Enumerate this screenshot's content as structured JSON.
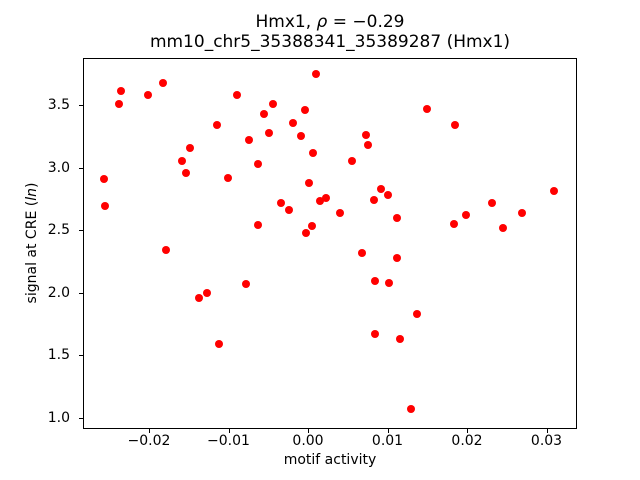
{
  "title": {
    "prefix": "Hmx1, ",
    "rho": "ρ",
    "suffix": " = −0.29",
    "line2": "mm10_chr5_35388341_35389287 (Hmx1)"
  },
  "ylabel_parts": {
    "prefix": "signal at CRE (",
    "italic": "ln",
    "suffix": ")"
  },
  "chart_data": {
    "type": "scatter",
    "title": "Hmx1, ρ = −0.29",
    "subtitle": "mm10_chr5_35388341_35389287 (Hmx1)",
    "xlabel": "motif activity",
    "ylabel": "signal at CRE (ln)",
    "xlim": [
      -0.02824,
      0.03375
    ],
    "ylim": [
      0.912,
      3.876
    ],
    "xticks": [
      -0.02,
      -0.01,
      0.0,
      0.01,
      0.02,
      0.03
    ],
    "xtick_labels": [
      "−0.02",
      "−0.01",
      "0.00",
      "0.01",
      "0.02",
      "0.03"
    ],
    "yticks": [
      1.0,
      1.5,
      2.0,
      2.5,
      3.0,
      3.5
    ],
    "ytick_labels": [
      "1.0",
      "1.5",
      "2.0",
      "2.5",
      "3.0",
      "3.5"
    ],
    "grid": false,
    "legend": "none",
    "marker_color": "#ff0000",
    "points": [
      [
        -0.0235,
        3.61
      ],
      [
        -0.0183,
        3.68
      ],
      [
        -0.0201,
        3.58
      ],
      [
        -0.0238,
        3.51
      ],
      [
        -0.009,
        3.58
      ],
      [
        -0.0115,
        3.34
      ],
      [
        -0.0074,
        3.22
      ],
      [
        -0.0148,
        3.16
      ],
      [
        -0.0159,
        3.05
      ],
      [
        -0.0063,
        3.03
      ],
      [
        -0.0154,
        2.96
      ],
      [
        -0.0257,
        2.91
      ],
      [
        -0.0101,
        2.92
      ],
      [
        -0.0256,
        2.69
      ],
      [
        -0.0063,
        2.54
      ],
      [
        -0.0179,
        2.34
      ],
      [
        0.001,
        3.75
      ],
      [
        -0.0044,
        3.51
      ],
      [
        -0.0055,
        3.43
      ],
      [
        -0.0004,
        3.46
      ],
      [
        -0.0019,
        3.36
      ],
      [
        -0.0049,
        3.28
      ],
      [
        -0.0009,
        3.25
      ],
      [
        0.015,
        3.47
      ],
      [
        0.0073,
        3.26
      ],
      [
        0.0076,
        3.18
      ],
      [
        0.0006,
        3.12
      ],
      [
        0.0055,
        3.05
      ],
      [
        0.0001,
        2.88
      ],
      [
        0.0092,
        2.83
      ],
      [
        0.0101,
        2.78
      ],
      [
        0.0083,
        2.74
      ],
      [
        0.0023,
        2.76
      ],
      [
        0.0015,
        2.73
      ],
      [
        -0.0034,
        2.72
      ],
      [
        -0.0024,
        2.66
      ],
      [
        0.004,
        2.64
      ],
      [
        0.0112,
        2.6
      ],
      [
        0.0005,
        2.53
      ],
      [
        -0.0002,
        2.48
      ],
      [
        0.0185,
        3.34
      ],
      [
        0.031,
        2.81
      ],
      [
        0.0231,
        2.72
      ],
      [
        0.0269,
        2.64
      ],
      [
        0.0199,
        2.62
      ],
      [
        0.0183,
        2.55
      ],
      [
        0.0245,
        2.52
      ],
      [
        -0.0078,
        2.07
      ],
      [
        -0.0127,
        2.0
      ],
      [
        -0.0137,
        1.96
      ],
      [
        -0.0112,
        1.59
      ],
      [
        0.0068,
        2.32
      ],
      [
        0.0112,
        2.28
      ],
      [
        0.0084,
        2.09
      ],
      [
        0.0102,
        2.08
      ],
      [
        0.0137,
        1.83
      ],
      [
        0.0084,
        1.67
      ],
      [
        0.0116,
        1.63
      ],
      [
        0.0129,
        1.07
      ]
    ]
  }
}
